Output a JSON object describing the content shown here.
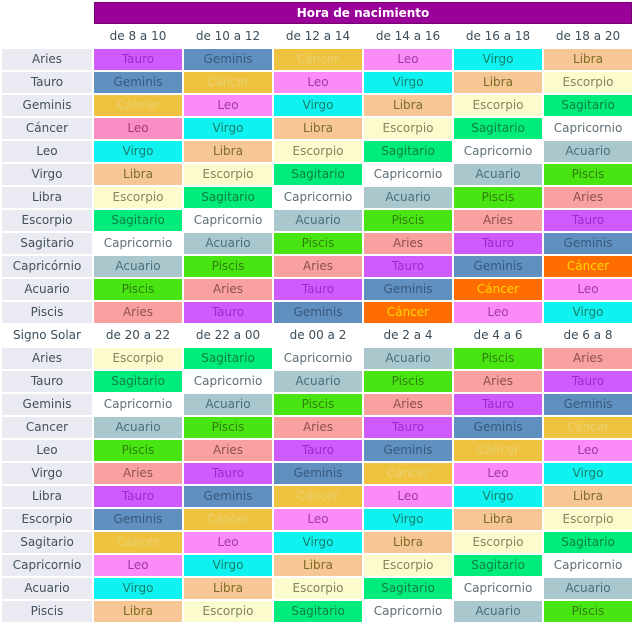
{
  "chart_data": {
    "type": "table",
    "title": "Hora de nacimiento",
    "section1": {
      "corner": "",
      "columns": [
        "de 8 a 10",
        "de 10 a 12",
        "de 12 a 14",
        "de 14 a 16",
        "de 16 a 18",
        "de 18 a 20"
      ],
      "rows": [
        {
          "label": "Aries",
          "cells": [
            [
              "Tauro",
              "tauro"
            ],
            [
              "Geminis",
              "geminis"
            ],
            [
              "Cáncer",
              "cancer"
            ],
            [
              "Leo",
              "leo"
            ],
            [
              "Virgo",
              "virgo"
            ],
            [
              "Libra",
              "libra"
            ]
          ]
        },
        {
          "label": "Tauro",
          "cells": [
            [
              "Geminis",
              "geminis"
            ],
            [
              "Cáncer",
              "cancer"
            ],
            [
              "Leo",
              "leo"
            ],
            [
              "Virgo",
              "virgo"
            ],
            [
              "Libra",
              "libra"
            ],
            [
              "Escorpio",
              "escorpio"
            ]
          ]
        },
        {
          "label": "Geminis",
          "cells": [
            [
              "Cáncer",
              "cancer"
            ],
            [
              "Leo",
              "leo"
            ],
            [
              "Virgo",
              "virgo"
            ],
            [
              "Libra",
              "libra"
            ],
            [
              "Escorpio",
              "escorpio"
            ],
            [
              "Sagitario",
              "sagitario"
            ]
          ]
        },
        {
          "label": "Cáncer",
          "cells": [
            [
              "Leo",
              "leo-pink"
            ],
            [
              "Virgo",
              "virgo"
            ],
            [
              "Libra",
              "libra"
            ],
            [
              "Escorpio",
              "escorpio"
            ],
            [
              "Sagitario",
              "sagitario"
            ],
            [
              "Capricornio",
              "capricornio"
            ]
          ]
        },
        {
          "label": "Leo",
          "cells": [
            [
              "Virgo",
              "virgo"
            ],
            [
              "Libra",
              "libra"
            ],
            [
              "Escorpio",
              "escorpio"
            ],
            [
              "Sagitario",
              "sagitario"
            ],
            [
              "Capricornio",
              "capricornio"
            ],
            [
              "Acuario",
              "acuario"
            ]
          ]
        },
        {
          "label": "Virgo",
          "cells": [
            [
              "Libra",
              "libra"
            ],
            [
              "Escorpio",
              "escorpio"
            ],
            [
              "Sagitario",
              "sagitario"
            ],
            [
              "Capricornio",
              "capricornio"
            ],
            [
              "Acuario",
              "acuario"
            ],
            [
              "Piscis",
              "piscis"
            ]
          ]
        },
        {
          "label": "Libra",
          "cells": [
            [
              "Escorpio",
              "escorpio"
            ],
            [
              "Sagitario",
              "sagitario"
            ],
            [
              "Capricornio",
              "capricornio"
            ],
            [
              "Acuario",
              "acuario"
            ],
            [
              "Piscis",
              "piscis"
            ],
            [
              "Aries",
              "aries"
            ]
          ]
        },
        {
          "label": "Escorpio",
          "cells": [
            [
              "Sagitario",
              "sagitario"
            ],
            [
              "Capricornio",
              "capricornio"
            ],
            [
              "Acuario",
              "acuario"
            ],
            [
              "Piscis",
              "piscis"
            ],
            [
              "Aries",
              "aries"
            ],
            [
              "Tauro",
              "tauro"
            ]
          ]
        },
        {
          "label": "Sagitario",
          "cells": [
            [
              "Capricornio",
              "capricornio"
            ],
            [
              "Acuario",
              "acuario"
            ],
            [
              "Piscis",
              "piscis"
            ],
            [
              "Aries",
              "aries"
            ],
            [
              "Tauro",
              "tauro"
            ],
            [
              "Geminis",
              "geminis"
            ]
          ]
        },
        {
          "label": "Capricórnio",
          "cells": [
            [
              "Acuario",
              "acuario"
            ],
            [
              "Piscis",
              "piscis"
            ],
            [
              "Aries",
              "aries"
            ],
            [
              "Tauro",
              "tauro"
            ],
            [
              "Geminis",
              "geminis"
            ],
            [
              "Cáncer",
              "cancer-orange"
            ]
          ]
        },
        {
          "label": "Acuario",
          "cells": [
            [
              "Piscis",
              "piscis"
            ],
            [
              "Aries",
              "aries"
            ],
            [
              "Tauro",
              "tauro"
            ],
            [
              "Geminis",
              "geminis"
            ],
            [
              "Cáncer",
              "cancer-orange"
            ],
            [
              "Leo",
              "leo"
            ]
          ]
        },
        {
          "label": "Piscis",
          "cells": [
            [
              "Aries",
              "aries"
            ],
            [
              "Tauro",
              "tauro"
            ],
            [
              "Geminis",
              "geminis"
            ],
            [
              "Cáncer",
              "cancer-orange"
            ],
            [
              "Leo",
              "leo"
            ],
            [
              "Virgo",
              "virgo"
            ]
          ]
        }
      ]
    },
    "section2": {
      "corner": "Signo Solar",
      "columns": [
        "de 20 a 22",
        "de 22 a 00",
        "de 00 a 2",
        "de 2 a 4",
        "de 4 a 6",
        "de 6 a 8"
      ],
      "rows": [
        {
          "label": "Aries",
          "cells": [
            [
              "Escorpio",
              "escorpio"
            ],
            [
              "Sagitario",
              "sagitario"
            ],
            [
              "Capricornio",
              "capricornio"
            ],
            [
              "Acuario",
              "acuario"
            ],
            [
              "Piscis",
              "piscis"
            ],
            [
              "Aries",
              "aries"
            ]
          ]
        },
        {
          "label": "Tauro",
          "cells": [
            [
              "Sagitario",
              "sagitario"
            ],
            [
              "Capricornio",
              "capricornio"
            ],
            [
              "Acuario",
              "acuario"
            ],
            [
              "Piscis",
              "piscis"
            ],
            [
              "Aries",
              "aries"
            ],
            [
              "Tauro",
              "tauro"
            ]
          ]
        },
        {
          "label": "Geminis",
          "cells": [
            [
              "Capricornio",
              "capricornio"
            ],
            [
              "Acuario",
              "acuario"
            ],
            [
              "Piscis",
              "piscis"
            ],
            [
              "Aries",
              "aries"
            ],
            [
              "Tauro",
              "tauro"
            ],
            [
              "Geminis",
              "geminis"
            ]
          ]
        },
        {
          "label": "Cancer",
          "cells": [
            [
              "Acuario",
              "acuario"
            ],
            [
              "Piscis",
              "piscis"
            ],
            [
              "Aries",
              "aries"
            ],
            [
              "Tauro",
              "tauro"
            ],
            [
              "Geminis",
              "geminis"
            ],
            [
              "Cáncer",
              "cancer"
            ]
          ]
        },
        {
          "label": "Leo",
          "cells": [
            [
              "Piscis",
              "piscis"
            ],
            [
              "Aries",
              "aries"
            ],
            [
              "Tauro",
              "tauro"
            ],
            [
              "Geminis",
              "geminis"
            ],
            [
              "Cáncer",
              "cancer"
            ],
            [
              "Leo",
              "leo"
            ]
          ]
        },
        {
          "label": "Virgo",
          "cells": [
            [
              "Aries",
              "aries"
            ],
            [
              "Tauro",
              "tauro"
            ],
            [
              "Geminis",
              "geminis"
            ],
            [
              "Cáncer",
              "cancer"
            ],
            [
              "Leo",
              "leo"
            ],
            [
              "Virgo",
              "virgo"
            ]
          ]
        },
        {
          "label": "Libra",
          "cells": [
            [
              "Tauro",
              "tauro"
            ],
            [
              "Geminis",
              "geminis"
            ],
            [
              "Cáncer",
              "cancer"
            ],
            [
              "Leo",
              "leo"
            ],
            [
              "Virgo",
              "virgo"
            ],
            [
              "Libra",
              "libra"
            ]
          ]
        },
        {
          "label": "Escorpio",
          "cells": [
            [
              "Geminis",
              "geminis"
            ],
            [
              "Cáncer",
              "cancer"
            ],
            [
              "Leo",
              "leo"
            ],
            [
              "Virgo",
              "virgo"
            ],
            [
              "Libra",
              "libra"
            ],
            [
              "Escorpio",
              "escorpio"
            ]
          ]
        },
        {
          "label": "Sagitario",
          "cells": [
            [
              "Cáncer",
              "cancer"
            ],
            [
              "Leo",
              "leo"
            ],
            [
              "Virgo",
              "virgo"
            ],
            [
              "Libra",
              "libra"
            ],
            [
              "Escorpio",
              "escorpio"
            ],
            [
              "Sagitario",
              "sagitario"
            ]
          ]
        },
        {
          "label": "Capricornio",
          "cells": [
            [
              "Leo",
              "leo"
            ],
            [
              "Virgo",
              "virgo"
            ],
            [
              "Libra",
              "libra"
            ],
            [
              "Escorpio",
              "escorpio"
            ],
            [
              "Sagitario",
              "sagitario"
            ],
            [
              "Capricornio",
              "capricornio"
            ]
          ]
        },
        {
          "label": "Acuario",
          "cells": [
            [
              "Virgo",
              "virgo"
            ],
            [
              "Libra",
              "libra"
            ],
            [
              "Escorpio",
              "escorpio"
            ],
            [
              "Sagitario",
              "sagitario"
            ],
            [
              "Capricornio",
              "capricornio"
            ],
            [
              "Acuario",
              "acuario"
            ]
          ]
        },
        {
          "label": "Piscis",
          "cells": [
            [
              "Libra",
              "libra"
            ],
            [
              "Escorpio",
              "escorpio"
            ],
            [
              "Sagitario",
              "sagitario"
            ],
            [
              "Capricornio",
              "capricornio"
            ],
            [
              "Acuario",
              "acuario"
            ],
            [
              "Piscis",
              "piscis"
            ]
          ]
        }
      ]
    }
  },
  "colors": {
    "title_bg": "#9a0199",
    "title_fg": "#ffffff",
    "title_border": "#76006f",
    "header_fg": "#3c4d59",
    "label_bg": "#e9eaf2",
    "label_fg": "#42505c",
    "signs": {
      "aries": [
        "#f9a0a0",
        "#8e5050"
      ],
      "tauro": [
        "#cf5bfd",
        "#9a2ad0"
      ],
      "geminis": [
        "#6090c0",
        "#36587c"
      ],
      "cancer": [
        "#efc240",
        "#e9d170"
      ],
      "cancer-orange": [
        "#ff6c00",
        "#ffd900"
      ],
      "leo": [
        "#fb8bf7",
        "#a03aa8"
      ],
      "leo-pink": [
        "#fa8dc4",
        "#a03a72"
      ],
      "virgo": [
        "#0ff2ef",
        "#177f6a"
      ],
      "libra": [
        "#f6c795",
        "#7c6c25"
      ],
      "escorpio": [
        "#fbfbce",
        "#84845c"
      ],
      "sagitario": [
        "#02ec7b",
        "#0f7f43"
      ],
      "capricornio": [
        "#ffffff",
        "#5f6e77"
      ],
      "acuario": [
        "#a9c7cc",
        "#48707c"
      ],
      "piscis": [
        "#49e513",
        "#2f7f0b"
      ]
    }
  }
}
